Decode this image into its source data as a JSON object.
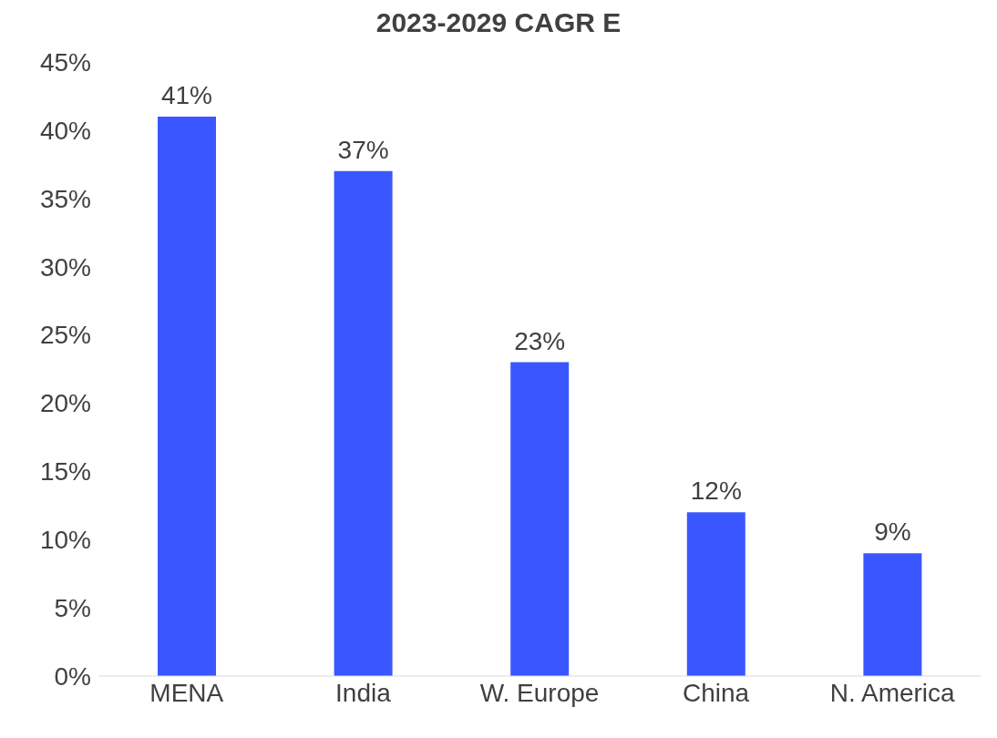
{
  "chart_data": {
    "type": "bar",
    "title": "2023-2029 CAGR E",
    "categories": [
      "MENA",
      "India",
      "W. Europe",
      "China",
      "N. America"
    ],
    "values": [
      41,
      37,
      23,
      12,
      9
    ],
    "color": "#3a57ff",
    "value_labels": [
      "41%",
      "37%",
      "23%",
      "12%",
      "9%"
    ],
    "ylim": [
      0,
      45
    ],
    "yticks": [
      {
        "value": 0,
        "label": "0%"
      },
      {
        "value": 5,
        "label": "5%"
      },
      {
        "value": 10,
        "label": "10%"
      },
      {
        "value": 15,
        "label": "15%"
      },
      {
        "value": 20,
        "label": "20%"
      },
      {
        "value": 25,
        "label": "25%"
      },
      {
        "value": 30,
        "label": "30%"
      },
      {
        "value": 35,
        "label": "35%"
      },
      {
        "value": 40,
        "label": "40%"
      },
      {
        "value": 45,
        "label": "45%"
      }
    ],
    "grid": false
  }
}
